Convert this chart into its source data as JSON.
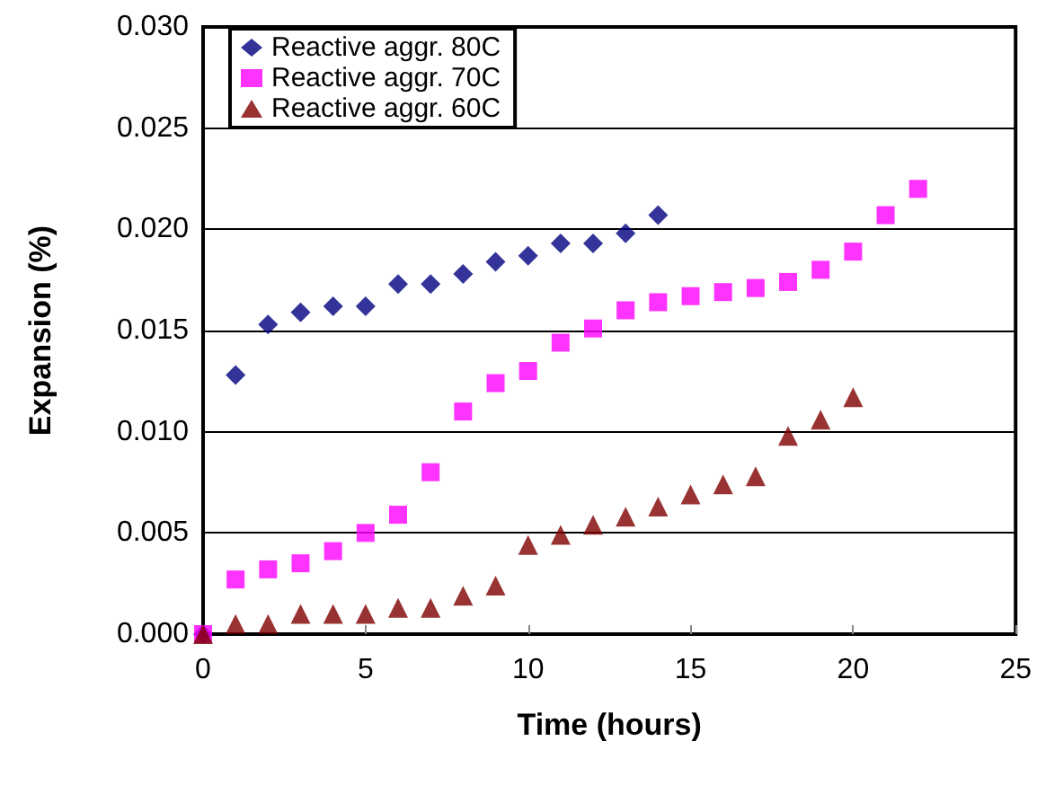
{
  "chart_data": {
    "type": "scatter",
    "xlabel": "Time (hours)",
    "ylabel": "Expansion (%)",
    "xlim": [
      0,
      25
    ],
    "xticks": [
      0,
      5,
      10,
      15,
      20,
      25
    ],
    "ylim": [
      0,
      0.03
    ],
    "yticks": [
      {
        "value": 0,
        "label": "0.000"
      },
      {
        "value": 0.005,
        "label": "0.005"
      },
      {
        "value": 0.01,
        "label": "0.010"
      },
      {
        "value": 0.015,
        "label": "0.015"
      },
      {
        "value": 0.02,
        "label": "0.020"
      },
      {
        "value": 0.025,
        "label": "0.025"
      },
      {
        "value": 0.03,
        "label": "0.030"
      }
    ],
    "grid": "y",
    "legend": "top left",
    "series": [
      {
        "name": "Reactive aggr. 80C",
        "color": "#000080",
        "marker": "diamond",
        "x": [
          0,
          1,
          2,
          3,
          4,
          5,
          6,
          7,
          8,
          9,
          10,
          11,
          12,
          13,
          14
        ],
        "values": [
          0,
          0.0128,
          0.0153,
          0.0159,
          0.0162,
          0.0162,
          0.0173,
          0.0173,
          0.0178,
          0.0184,
          0.0187,
          0.0193,
          0.0193,
          0.0198,
          0.0207
        ]
      },
      {
        "name": "Reactive aggr. 70C",
        "color": "#ff00ff",
        "marker": "square",
        "x": [
          0,
          1,
          2,
          3,
          4,
          5,
          6,
          7,
          8,
          9,
          10,
          11,
          12,
          13,
          14,
          15,
          16,
          17,
          18,
          19,
          20,
          21,
          22
        ],
        "values": [
          0,
          0.0027,
          0.0032,
          0.0035,
          0.0041,
          0.005,
          0.0059,
          0.008,
          0.011,
          0.0124,
          0.013,
          0.0144,
          0.0151,
          0.016,
          0.0164,
          0.0167,
          0.0169,
          0.0171,
          0.0174,
          0.018,
          0.0189,
          0.0207,
          0.022
        ]
      },
      {
        "name": "Reactive aggr. 60C",
        "color": "#800000",
        "marker": "triangle",
        "x": [
          0,
          1,
          2,
          3,
          4,
          5,
          6,
          7,
          8,
          9,
          10,
          11,
          12,
          13,
          14,
          15,
          16,
          17,
          18,
          19,
          20
        ],
        "values": [
          0,
          0.0005,
          0.0005,
          0.001,
          0.001,
          0.001,
          0.0013,
          0.0013,
          0.0019,
          0.0024,
          0.0044,
          0.0049,
          0.0054,
          0.0058,
          0.0063,
          0.0069,
          0.0074,
          0.0078,
          0.0098,
          0.0106,
          0.0117
        ]
      }
    ]
  }
}
